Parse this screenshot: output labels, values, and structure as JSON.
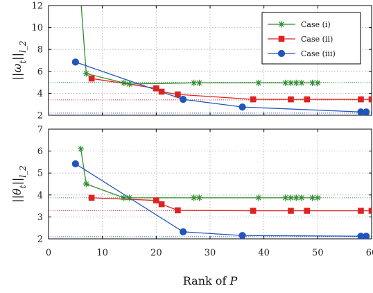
{
  "chart_data": [
    {
      "type": "line",
      "ylabel": "||ω_t||_{l_2}",
      "xlim": [
        0,
        60
      ],
      "ylim": [
        2,
        12
      ],
      "xticks": [
        0,
        10,
        20,
        30,
        40,
        50,
        60
      ],
      "yticks": [
        2,
        4,
        6,
        8,
        10,
        12
      ],
      "grid": true,
      "legend": "top-right",
      "series": [
        {
          "name": "Case (i)",
          "color": "#2e8b2e",
          "marker": "asterisk",
          "x": [
            6,
            7,
            14,
            15,
            27,
            28,
            39,
            44,
            45,
            46,
            47,
            49,
            50
          ],
          "y": [
            12.5,
            5.8,
            4.95,
            4.85,
            4.95,
            4.95,
            4.95,
            4.95,
            4.95,
            4.95,
            4.95,
            4.95,
            4.95
          ],
          "reference": 5.0
        },
        {
          "name": "Case (ii)",
          "color": "#dd2222",
          "marker": "square",
          "x": [
            8,
            20,
            21,
            24,
            38,
            45,
            48,
            58,
            60
          ],
          "y": [
            5.35,
            4.45,
            4.15,
            3.9,
            3.45,
            3.45,
            3.45,
            3.45,
            3.45
          ],
          "reference": 3.4
        },
        {
          "name": "Case (iii)",
          "color": "#2255bb",
          "marker": "circle",
          "x": [
            5,
            25,
            36,
            58,
            59
          ],
          "y": [
            6.85,
            3.45,
            2.75,
            2.3,
            2.3
          ],
          "reference": 2.2
        }
      ]
    },
    {
      "type": "line",
      "ylabel": "||θ_t||_{l_2}",
      "xlabel": "Rank of P",
      "xlim": [
        0,
        60
      ],
      "ylim": [
        2,
        7
      ],
      "xticks": [
        0,
        10,
        20,
        30,
        40,
        50,
        60
      ],
      "yticks": [
        2,
        3,
        4,
        5,
        6,
        7
      ],
      "grid": true,
      "series": [
        {
          "name": "Case (i)",
          "color": "#2e8b2e",
          "marker": "asterisk",
          "x": [
            6,
            7,
            14,
            15,
            27,
            28,
            39,
            44,
            45,
            46,
            47,
            49,
            50
          ],
          "y": [
            6.1,
            4.5,
            3.87,
            3.87,
            3.87,
            3.87,
            3.87,
            3.87,
            3.87,
            3.87,
            3.87,
            3.87,
            3.87
          ],
          "reference": 3.87
        },
        {
          "name": "Case (ii)",
          "color": "#dd2222",
          "marker": "square",
          "x": [
            8,
            20,
            21,
            24,
            38,
            45,
            48,
            58,
            60
          ],
          "y": [
            3.87,
            3.75,
            3.58,
            3.3,
            3.28,
            3.28,
            3.28,
            3.28,
            3.28
          ],
          "reference": 3.28
        },
        {
          "name": "Case (iii)",
          "color": "#2255bb",
          "marker": "circle",
          "x": [
            5,
            25,
            36,
            58,
            59
          ],
          "y": [
            5.42,
            2.32,
            2.15,
            2.12,
            2.12
          ],
          "reference": 2.1
        }
      ]
    }
  ]
}
